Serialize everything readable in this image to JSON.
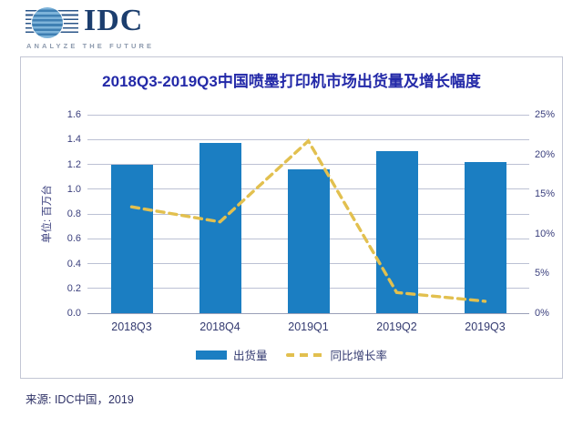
{
  "header": {
    "logo_text": "IDC",
    "tagline": "ANALYZE THE FUTURE"
  },
  "source": "来源: IDC中国，2019",
  "chart_data": {
    "type": "bar",
    "title": "2018Q3-2019Q3中国喷墨打印机市场出货量及增长幅度",
    "categories": [
      "2018Q3",
      "2018Q4",
      "2019Q1",
      "2019Q2",
      "2019Q3"
    ],
    "series": [
      {
        "name": "出货量",
        "type": "bar",
        "axis": "left",
        "values": [
          1.2,
          1.37,
          1.16,
          1.31,
          1.22
        ]
      },
      {
        "name": "同比增长率",
        "type": "line",
        "axis": "right",
        "dashed": true,
        "values": [
          13.4,
          11.5,
          21.7,
          2.6,
          1.5
        ]
      }
    ],
    "left_axis": {
      "title": "单位: 百万台",
      "min": 0.0,
      "max": 1.6,
      "step": 0.2,
      "decimals": 1
    },
    "right_axis": {
      "min": 0,
      "max": 25,
      "step": 5,
      "suffix": "%"
    },
    "grid": true,
    "legend_position": "bottom"
  },
  "colors": {
    "bar_blue": "#1b7ec2",
    "line_yellow": "#e2c04f",
    "title_blue": "#2329a8",
    "axis_text": "#3a3f7d",
    "label_text": "#333a70",
    "grid_line": "#bcc1d4",
    "axis_line": "#9aa0b8",
    "logo_navy": "#1c3e6e",
    "tagline_gray": "#8d9aae",
    "source_text": "#2e3166"
  }
}
